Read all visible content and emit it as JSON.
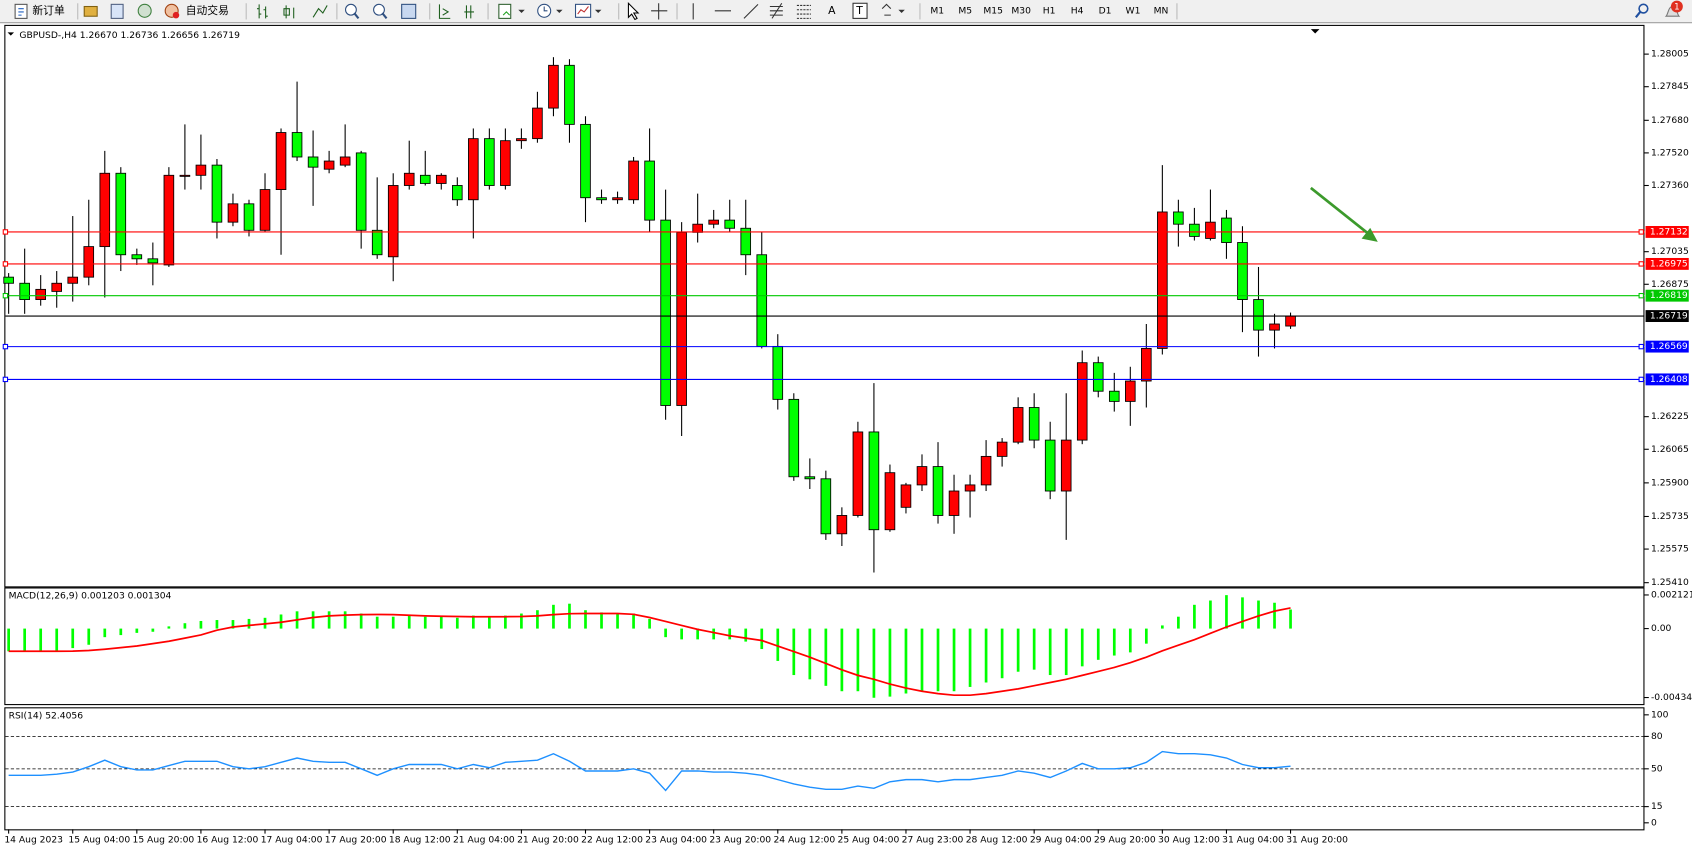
{
  "toolbar": {
    "new_order": "新订单",
    "auto_trading": "自动交易",
    "text_tool": "A",
    "label_tool": "T",
    "timeframes": [
      "M1",
      "M5",
      "M15",
      "M30",
      "H1",
      "H4",
      "D1",
      "W1",
      "MN"
    ],
    "notifications": "1"
  },
  "chart_data": [
    {
      "type": "candlestick",
      "title": "GBPUSD-,H4 1.26670 1.26736 1.26656 1.26719",
      "up_color": "#ff0000",
      "down_color": "#00ff00",
      "categories": [
        "14 Aug 2023",
        null,
        null,
        null,
        "15 Aug 04:00",
        null,
        null,
        null,
        "15 Aug 20:00",
        null,
        null,
        null,
        "16 Aug 12:00",
        null,
        null,
        null,
        "17 Aug 04:00",
        null,
        null,
        null,
        "17 Aug 20:00",
        null,
        null,
        null,
        "18 Aug 12:00",
        null,
        null,
        null,
        "21 Aug 04:00",
        null,
        null,
        null,
        "21 Aug 20:00",
        null,
        null,
        null,
        "22 Aug 12:00",
        null,
        null,
        null,
        "23 Aug 04:00",
        null,
        null,
        null,
        "23 Aug 20:00",
        null,
        null,
        null,
        "24 Aug 12:00",
        null,
        null,
        null,
        "25 Aug 04:00",
        null,
        null,
        null,
        "27 Aug 23:00",
        null,
        null,
        null,
        "28 Aug 12:00",
        null,
        null,
        null,
        "29 Aug 04:00",
        null,
        null,
        null,
        "29 Aug 20:00",
        null,
        null,
        null,
        "30 Aug 12:00",
        null,
        null,
        null,
        "31 Aug 04:00",
        null,
        null,
        null,
        "31 Aug 20:00"
      ],
      "open": [
        1.2691,
        1.2688,
        1.268,
        1.2684,
        1.2688,
        1.2691,
        1.2706,
        1.2742,
        1.2702,
        1.27,
        1.2697,
        1.2741,
        1.2741,
        1.2746,
        1.2718,
        1.2727,
        1.2714,
        1.2734,
        1.2762,
        1.275,
        1.2744,
        1.2746,
        1.2752,
        1.2714,
        1.2701,
        1.2736,
        1.2741,
        1.2737,
        1.2736,
        1.2729,
        1.2759,
        1.2736,
        1.2758,
        1.2759,
        1.2774,
        1.2795,
        1.2766,
        1.273,
        1.2729,
        1.2729,
        1.2748,
        1.2719,
        1.2628,
        1.2713,
        1.2717,
        1.2719,
        1.2715,
        1.2702,
        1.2657,
        1.2631,
        1.2593,
        1.2592,
        1.2565,
        1.2574,
        1.2615,
        1.2567,
        1.2578,
        1.2589,
        1.2598,
        1.2574,
        1.2586,
        1.2589,
        1.2603,
        1.261,
        1.2627,
        1.2611,
        1.2586,
        1.2611,
        1.2649,
        1.2635,
        1.263,
        1.264,
        1.2656,
        1.2723,
        1.2717,
        1.271,
        1.272,
        1.2708,
        1.268,
        1.2665,
        1.2667
      ],
      "high": [
        1.2693,
        1.2705,
        1.2692,
        1.2694,
        1.2721,
        1.2729,
        1.2753,
        1.2745,
        1.2705,
        1.2708,
        1.2745,
        1.2766,
        1.2761,
        1.2749,
        1.2732,
        1.2729,
        1.2742,
        1.2764,
        1.2787,
        1.2763,
        1.2753,
        1.2766,
        1.2753,
        1.274,
        1.2742,
        1.2758,
        1.2753,
        1.2742,
        1.274,
        1.2764,
        1.2764,
        1.2764,
        1.2764,
        1.2782,
        1.2799,
        1.2798,
        1.277,
        1.2734,
        1.2733,
        1.275,
        1.2764,
        1.2734,
        1.2718,
        1.2732,
        1.2724,
        1.2729,
        1.2729,
        1.2713,
        1.2663,
        1.2634,
        1.2602,
        1.2596,
        1.2578,
        1.262,
        1.2639,
        1.2599,
        1.259,
        1.2604,
        1.261,
        1.2594,
        1.2594,
        1.2611,
        1.2612,
        1.2632,
        1.2634,
        1.262,
        1.2634,
        1.2655,
        1.2652,
        1.2644,
        1.2647,
        1.2668,
        1.2746,
        1.2729,
        1.2725,
        1.2734,
        1.2724,
        1.2716,
        1.2696,
        1.2673,
        1.26736
      ],
      "low": [
        1.2673,
        1.2673,
        1.2677,
        1.2676,
        1.2679,
        1.2687,
        1.2681,
        1.2694,
        1.2697,
        1.2687,
        1.2696,
        1.2734,
        1.2734,
        1.271,
        1.2716,
        1.2711,
        1.2713,
        1.2702,
        1.2748,
        1.2726,
        1.2742,
        1.2745,
        1.2705,
        1.27,
        1.2689,
        1.2734,
        1.2736,
        1.2734,
        1.2726,
        1.271,
        1.2734,
        1.2734,
        1.2754,
        1.2757,
        1.277,
        1.2757,
        1.2718,
        1.2727,
        1.2727,
        1.2727,
        1.2713,
        1.2621,
        1.2613,
        1.2708,
        1.2715,
        1.2713,
        1.2692,
        1.2656,
        1.2626,
        1.2591,
        1.2587,
        1.2562,
        1.2559,
        1.2573,
        1.2546,
        1.2566,
        1.2575,
        1.2586,
        1.257,
        1.2565,
        1.2573,
        1.2586,
        1.2598,
        1.2609,
        1.2607,
        1.2582,
        1.2562,
        1.2609,
        1.2632,
        1.2625,
        1.2618,
        1.2627,
        1.2653,
        1.2706,
        1.2709,
        1.2709,
        1.27,
        1.2664,
        1.2652,
        1.2656,
        1.26656
      ],
      "close": [
        1.2688,
        1.268,
        1.2685,
        1.2688,
        1.2691,
        1.2706,
        1.2742,
        1.2702,
        1.27,
        1.2698,
        1.2741,
        1.2741,
        1.2746,
        1.2718,
        1.2727,
        1.2714,
        1.2734,
        1.2762,
        1.275,
        1.2745,
        1.2748,
        1.275,
        1.2714,
        1.2702,
        1.2736,
        1.2742,
        1.2737,
        1.2741,
        1.2729,
        1.2759,
        1.2736,
        1.2758,
        1.2759,
        1.2774,
        1.2795,
        1.2766,
        1.273,
        1.2729,
        1.273,
        1.2748,
        1.2719,
        1.2628,
        1.2713,
        1.2717,
        1.2719,
        1.2715,
        1.2702,
        1.2657,
        1.2631,
        1.2593,
        1.2592,
        1.2565,
        1.2574,
        1.2615,
        1.2567,
        1.2595,
        1.2589,
        1.2598,
        1.2574,
        1.2586,
        1.2589,
        1.2603,
        1.261,
        1.2627,
        1.2611,
        1.2586,
        1.2611,
        1.2649,
        1.2635,
        1.263,
        1.264,
        1.2656,
        1.2723,
        1.2717,
        1.2711,
        1.2718,
        1.2708,
        1.268,
        1.2665,
        1.2668,
        1.26719
      ],
      "ylim": [
        1.25392,
        1.28138
      ],
      "yticks": [
        1.28005,
        1.27845,
        {
          "value": 1.2768,
          "label": "1.27680"
        },
        {
          "value": 1.2752,
          "label": "1.27520"
        },
        {
          "value": 1.2736,
          "label": "1.27360"
        },
        1.27035,
        1.26875,
        1.26225,
        1.26065,
        {
          "value": 1.259,
          "label": "1.25900"
        },
        1.25735,
        1.25575,
        {
          "value": 1.2541,
          "label": "1.25410"
        }
      ],
      "hlines": [
        {
          "value": 1.27132,
          "color": "#ff0000",
          "handles": true
        },
        {
          "value": 1.26975,
          "color": "#ff0000",
          "handles": true
        },
        {
          "value": 1.26819,
          "color": "#00c800",
          "handles": true
        },
        {
          "value": 1.26719,
          "color": "#000000",
          "handles": false
        },
        {
          "value": 1.26569,
          "color": "#0000ff",
          "handles": true
        },
        {
          "value": 1.26408,
          "color": "#0000ff",
          "handles": true
        }
      ]
    },
    {
      "type": "macd",
      "title": "MACD(12,26,9) 0.001203 0.001304",
      "histogram": {
        "color": "#00ff00",
        "values": [
          -0.00143,
          -0.00143,
          -0.00143,
          -0.00143,
          -0.00123,
          -0.00102,
          -0.00054,
          -0.00041,
          -0.00027,
          -0.0002,
          0.00014,
          0.00034,
          0.00048,
          0.00054,
          0.00054,
          0.00061,
          0.00068,
          0.00089,
          0.00109,
          0.00109,
          0.00109,
          0.00109,
          0.00095,
          0.00075,
          0.00075,
          0.00082,
          0.00075,
          0.00075,
          0.00068,
          0.00082,
          0.00075,
          0.00082,
          0.00095,
          0.00116,
          0.0015,
          0.00157,
          0.00116,
          0.00102,
          0.00095,
          0.00095,
          0.00061,
          -0.00054,
          -0.00068,
          -0.00068,
          -0.00068,
          -0.00068,
          -0.00082,
          -0.00129,
          -0.00204,
          -0.00293,
          -0.0032,
          -0.00361,
          -0.00395,
          -0.00395,
          -0.00436,
          -0.00429,
          -0.00409,
          -0.00395,
          -0.00395,
          -0.00395,
          -0.00368,
          -0.0034,
          -0.00313,
          -0.00272,
          -0.00259,
          -0.00293,
          -0.00293,
          -0.00238,
          -0.00197,
          -0.0017,
          -0.0015,
          -0.00095,
          0.0002,
          0.00075,
          0.0015,
          0.00177,
          0.00211,
          0.00197,
          0.00177,
          0.00163,
          0.001203
        ]
      },
      "signal": {
        "color": "#ff0000",
        "values": [
          -0.00143,
          -0.00143,
          -0.00143,
          -0.00143,
          -0.00142,
          -0.00138,
          -0.0013,
          -0.0012,
          -0.0011,
          -0.00095,
          -0.0008,
          -0.0006,
          -0.0004,
          -0.0001,
          0.0001,
          0.0002,
          0.0003,
          0.0004,
          0.00055,
          0.0007,
          0.0008,
          0.00085,
          0.00088,
          0.00089,
          0.00088,
          0.00084,
          0.0008,
          0.00078,
          0.00076,
          0.00075,
          0.00075,
          0.00075,
          0.00076,
          0.0008,
          0.00088,
          0.00094,
          0.00095,
          0.00095,
          0.00095,
          0.0009,
          0.0007,
          0.00045,
          0.0002,
          -5e-05,
          -0.00025,
          -0.00045,
          -0.0006,
          -0.00075,
          -0.0011,
          -0.00145,
          -0.0018,
          -0.0022,
          -0.0026,
          -0.00295,
          -0.0032,
          -0.0035,
          -0.00375,
          -0.00395,
          -0.0041,
          -0.0042,
          -0.0042,
          -0.0041,
          -0.00395,
          -0.0038,
          -0.0036,
          -0.0034,
          -0.0032,
          -0.00295,
          -0.0027,
          -0.00245,
          -0.00215,
          -0.0018,
          -0.0014,
          -0.00105,
          -0.0007,
          -0.0003,
          0.0001,
          0.00045,
          0.0008,
          0.0011,
          0.001304
        ]
      },
      "ylim": [
        -0.00469,
        0.00246
      ],
      "yticks": [
        0.002121,
        {
          "value": 0,
          "label": "0.00"
        },
        -0.004348
      ]
    },
    {
      "type": "rsi",
      "title": "RSI(14) 52.4056",
      "color": "#1e90ff",
      "values": [
        44,
        44,
        44,
        45,
        47,
        52,
        58,
        52,
        49,
        49,
        53,
        57,
        57,
        57,
        52,
        50,
        52,
        56,
        60,
        57,
        56,
        56,
        50,
        44,
        50,
        54,
        54,
        54,
        50,
        54,
        51,
        56,
        57,
        58,
        64,
        57,
        48,
        48,
        48,
        50,
        46,
        30,
        48,
        48,
        47,
        47,
        46,
        44,
        40,
        36,
        33,
        31,
        31,
        34,
        32,
        38,
        40,
        40,
        38,
        40,
        40,
        42,
        44,
        48,
        46,
        42,
        48,
        55,
        50,
        50,
        51,
        56,
        66,
        64,
        64,
        63,
        60,
        54,
        51,
        51,
        52.4056
      ],
      "ylim": [
        0,
        100
      ],
      "yticks": [
        100,
        80,
        50,
        15,
        0
      ],
      "levels": [
        80,
        50,
        15
      ]
    }
  ]
}
